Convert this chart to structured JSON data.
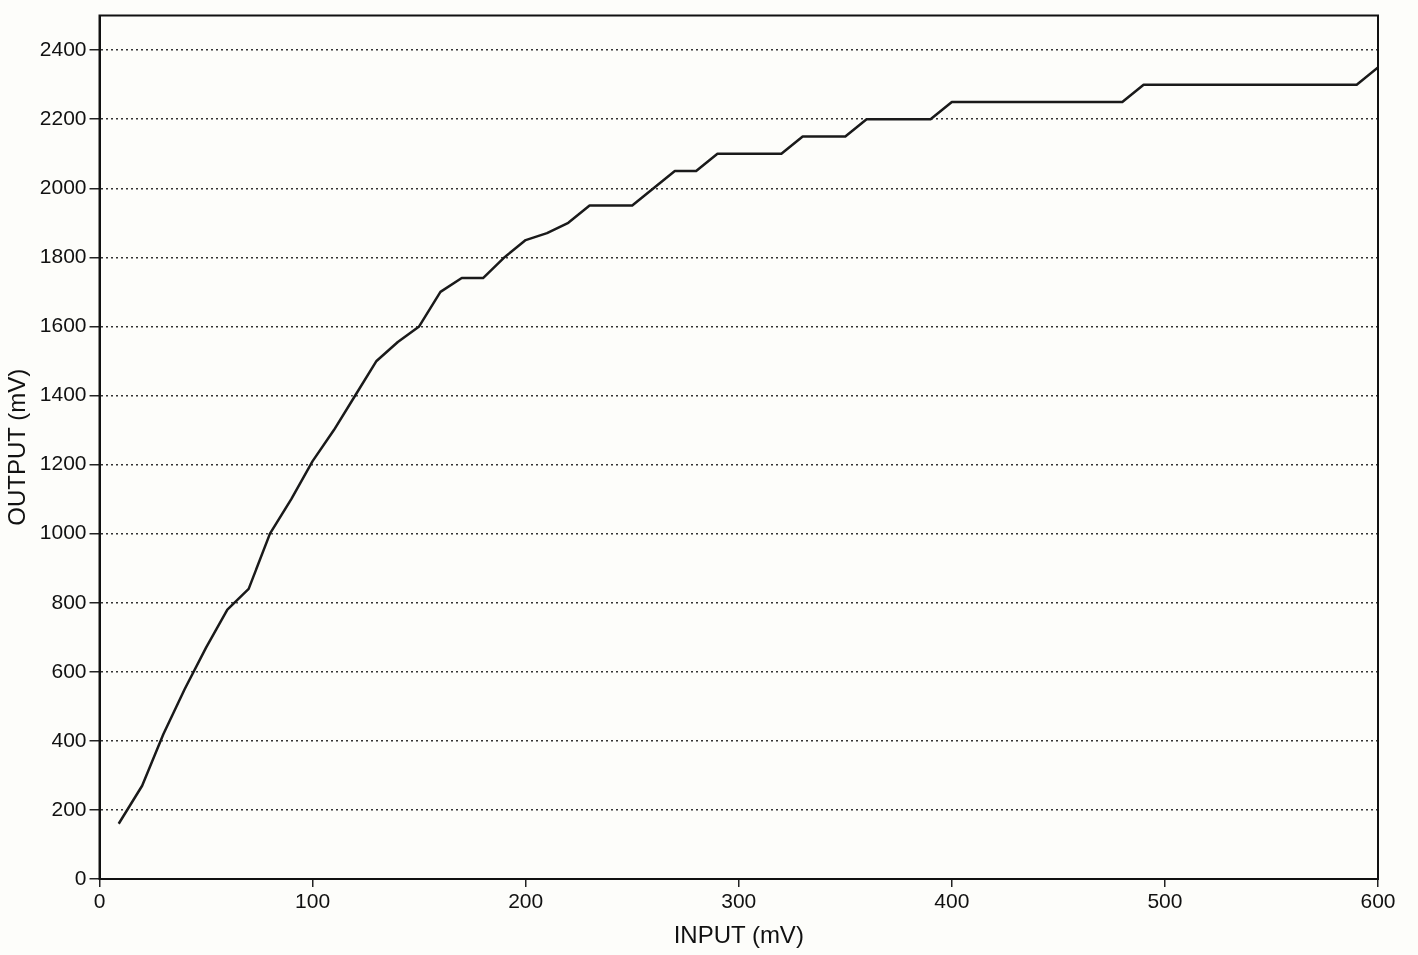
{
  "chart_data": {
    "type": "line",
    "xlabel": "INPUT (mV)",
    "ylabel": "OUTPUT (mV)",
    "x": [
      9,
      20,
      30,
      40,
      50,
      60,
      70,
      80,
      90,
      100,
      110,
      120,
      130,
      140,
      150,
      160,
      170,
      180,
      190,
      200,
      210,
      220,
      230,
      250,
      260,
      270,
      280,
      290,
      320,
      330,
      350,
      360,
      390,
      400,
      480,
      490,
      590,
      600
    ],
    "series": [
      {
        "color": "#1a1a1a",
        "values": [
          160,
          270,
          420,
          550,
          670,
          780,
          840,
          1000,
          1100,
          1210,
          1300,
          1400,
          1500,
          1555,
          1600,
          1700,
          1740,
          1740,
          1800,
          1850,
          1870,
          1900,
          1950,
          1950,
          2000,
          2050,
          2050,
          2100,
          2100,
          2150,
          2150,
          2200,
          2200,
          2250,
          2250,
          2300,
          2300,
          2350
        ]
      }
    ],
    "xlim": [
      0,
      600
    ],
    "xticks": [
      0,
      100,
      200,
      300,
      400,
      500,
      600
    ],
    "ylim": [
      0,
      2500
    ],
    "yticks": [
      0,
      200,
      400,
      600,
      800,
      1000,
      1200,
      1400,
      1600,
      1800,
      2000,
      2200,
      2400
    ],
    "grid": "y",
    "legend": false,
    "marker": "none",
    "line_style": "solid"
  }
}
